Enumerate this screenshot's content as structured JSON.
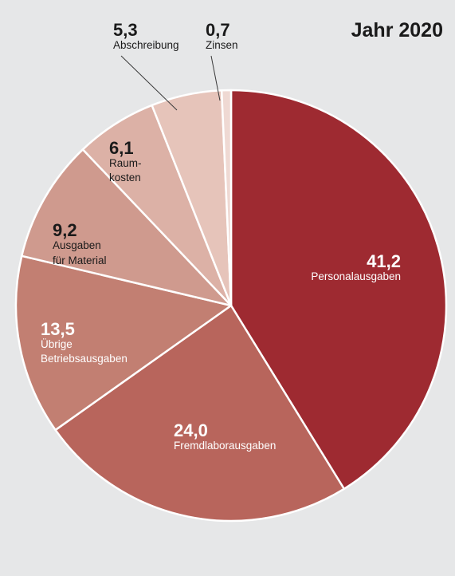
{
  "chart_data": {
    "type": "pie",
    "title": "Jahr 2020",
    "slices": [
      {
        "value": 41.2,
        "value_label": "41,2",
        "label_lines": [
          "Personalausgaben"
        ],
        "color": "#9e2a31",
        "text_color": "#ffffff"
      },
      {
        "value": 24.0,
        "value_label": "24,0",
        "label_lines": [
          "Fremdlaborausgaben"
        ],
        "color": "#b8655c",
        "text_color": "#ffffff"
      },
      {
        "value": 13.5,
        "value_label": "13,5",
        "label_lines": [
          "Übrige",
          "Betriebsausgaben"
        ],
        "color": "#c27f72",
        "text_color": "#ffffff"
      },
      {
        "value": 9.2,
        "value_label": "9,2",
        "label_lines": [
          "Ausgaben",
          "für Material"
        ],
        "color": "#cf9a8e",
        "text_color": "#1a1a1a"
      },
      {
        "value": 6.1,
        "value_label": "6,1",
        "label_lines": [
          "Raum-",
          "kosten"
        ],
        "color": "#dcb1a6",
        "text_color": "#1a1a1a"
      },
      {
        "value": 5.3,
        "value_label": "5,3",
        "label_lines": [
          "Abschreibung"
        ],
        "color": "#e6c4ba",
        "text_color": "#1a1a1a"
      },
      {
        "value": 0.7,
        "value_label": "0,7",
        "label_lines": [
          "Zinsen"
        ],
        "color": "#efd9d3",
        "text_color": "#1a1a1a"
      }
    ]
  }
}
